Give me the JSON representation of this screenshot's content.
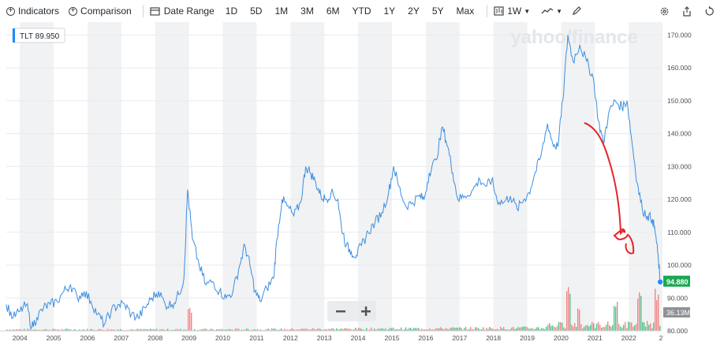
{
  "toolbar": {
    "indicators_label": "Indicators",
    "comparison_label": "Comparison",
    "date_range_label": "Date Range",
    "ranges": [
      "1D",
      "5D",
      "1M",
      "3M",
      "6M",
      "YTD",
      "1Y",
      "2Y",
      "5Y",
      "Max"
    ],
    "interval_label": "1W",
    "icons": [
      "settings-icon",
      "share-icon",
      "reset-icon"
    ]
  },
  "chart_data": {
    "type": "line",
    "ticker_label": "TLT 89.950",
    "watermark": "yahoo/finance",
    "x_years": [
      "2004",
      "2005",
      "2006",
      "2007",
      "2008",
      "2009",
      "2010",
      "2011",
      "2012",
      "2013",
      "2014",
      "2015",
      "2016",
      "2017",
      "2018",
      "2019",
      "2020",
      "2021",
      "2022",
      "2"
    ],
    "y_ticks": [
      "170.000",
      "160.000",
      "150.000",
      "140.000",
      "130.000",
      "120.000",
      "110.000",
      "100.000",
      "90.000",
      "80.000"
    ],
    "ylim": [
      80,
      172
    ],
    "xlim": [
      2003.6,
      2022.95
    ],
    "price_series": {
      "name": "TLT",
      "color": "#3b8ee0",
      "points": [
        [
          2003.6,
          88
        ],
        [
          2003.8,
          84
        ],
        [
          2004.0,
          86
        ],
        [
          2004.2,
          88
        ],
        [
          2004.35,
          81
        ],
        [
          2004.5,
          84
        ],
        [
          2004.7,
          87
        ],
        [
          2004.9,
          88
        ],
        [
          2005.1,
          89
        ],
        [
          2005.3,
          92
        ],
        [
          2005.5,
          94
        ],
        [
          2005.7,
          90
        ],
        [
          2005.9,
          92
        ],
        [
          2006.1,
          89
        ],
        [
          2006.3,
          85
        ],
        [
          2006.5,
          82
        ],
        [
          2006.7,
          86
        ],
        [
          2006.9,
          88
        ],
        [
          2007.1,
          88
        ],
        [
          2007.3,
          85
        ],
        [
          2007.5,
          84
        ],
        [
          2007.7,
          87
        ],
        [
          2007.9,
          90
        ],
        [
          2008.1,
          92
        ],
        [
          2008.3,
          88
        ],
        [
          2008.5,
          88
        ],
        [
          2008.7,
          91
        ],
        [
          2008.85,
          96
        ],
        [
          2008.96,
          123
        ],
        [
          2009.1,
          108
        ],
        [
          2009.3,
          100
        ],
        [
          2009.5,
          94
        ],
        [
          2009.7,
          95
        ],
        [
          2009.9,
          92
        ],
        [
          2010.1,
          90
        ],
        [
          2010.3,
          92
        ],
        [
          2010.5,
          100
        ],
        [
          2010.65,
          106
        ],
        [
          2010.8,
          100
        ],
        [
          2010.95,
          92
        ],
        [
          2011.1,
          89
        ],
        [
          2011.3,
          93
        ],
        [
          2011.5,
          96
        ],
        [
          2011.6,
          108
        ],
        [
          2011.75,
          120
        ],
        [
          2011.9,
          118
        ],
        [
          2012.1,
          115
        ],
        [
          2012.3,
          119
        ],
        [
          2012.45,
          130
        ],
        [
          2012.6,
          128
        ],
        [
          2012.75,
          125
        ],
        [
          2012.9,
          121
        ],
        [
          2013.05,
          120
        ],
        [
          2013.2,
          122
        ],
        [
          2013.4,
          120
        ],
        [
          2013.5,
          112
        ],
        [
          2013.65,
          106
        ],
        [
          2013.8,
          104
        ],
        [
          2013.95,
          103
        ],
        [
          2014.1,
          106
        ],
        [
          2014.3,
          110
        ],
        [
          2014.5,
          113
        ],
        [
          2014.7,
          116
        ],
        [
          2014.9,
          122
        ],
        [
          2015.05,
          130
        ],
        [
          2015.2,
          124
        ],
        [
          2015.4,
          118
        ],
        [
          2015.6,
          119
        ],
        [
          2015.8,
          121
        ],
        [
          2015.95,
          120
        ],
        [
          2016.1,
          128
        ],
        [
          2016.3,
          132
        ],
        [
          2016.5,
          142
        ],
        [
          2016.65,
          136
        ],
        [
          2016.8,
          128
        ],
        [
          2016.95,
          120
        ],
        [
          2017.15,
          121
        ],
        [
          2017.4,
          123
        ],
        [
          2017.6,
          126
        ],
        [
          2017.8,
          124
        ],
        [
          2017.95,
          126
        ],
        [
          2018.1,
          120
        ],
        [
          2018.3,
          119
        ],
        [
          2018.5,
          121
        ],
        [
          2018.7,
          117
        ],
        [
          2018.9,
          120
        ],
        [
          2019.05,
          122
        ],
        [
          2019.2,
          127
        ],
        [
          2019.4,
          133
        ],
        [
          2019.6,
          143
        ],
        [
          2019.75,
          137
        ],
        [
          2019.9,
          136
        ],
        [
          2020.05,
          150
        ],
        [
          2020.2,
          170
        ],
        [
          2020.35,
          162
        ],
        [
          2020.55,
          167
        ],
        [
          2020.75,
          162
        ],
        [
          2020.95,
          157
        ],
        [
          2021.1,
          144
        ],
        [
          2021.25,
          137
        ],
        [
          2021.4,
          146
        ],
        [
          2021.6,
          150
        ],
        [
          2021.8,
          148
        ],
        [
          2021.95,
          150
        ],
        [
          2022.1,
          137
        ],
        [
          2022.25,
          125
        ],
        [
          2022.4,
          117
        ],
        [
          2022.55,
          115
        ],
        [
          2022.7,
          114
        ],
        [
          2022.8,
          109
        ],
        [
          2022.88,
          101
        ],
        [
          2022.93,
          94.88
        ]
      ]
    },
    "volume_series": {
      "label": "36.13M",
      "up_color": "#3bbf82",
      "down_color": "#f17a7a",
      "spikes": [
        [
          2009.0,
          0.5
        ],
        [
          2020.2,
          1.0
        ],
        [
          2020.5,
          0.55
        ],
        [
          2021.6,
          0.7
        ],
        [
          2022.3,
          0.85
        ],
        [
          2022.8,
          0.9
        ]
      ]
    },
    "last_price_label": "94.880",
    "annotation": "hand-drawn red arrow pointing down"
  }
}
